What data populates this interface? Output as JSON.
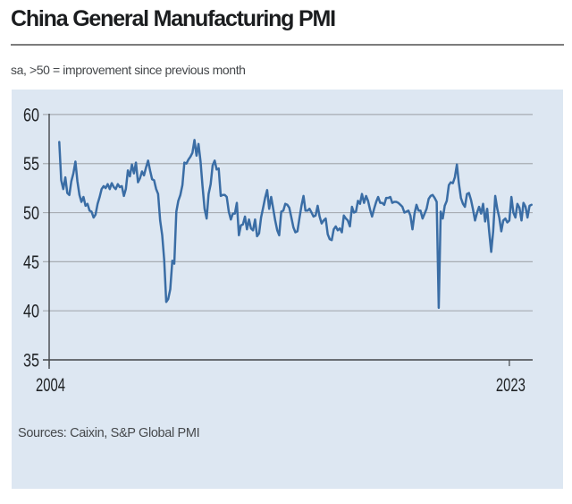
{
  "header": {
    "title": "China General Manufacturing PMI",
    "subtitle": "sa, >50 = improvement since previous month"
  },
  "footer": {
    "sources": "Sources: Caixin, S&P Global PMI"
  },
  "chart_data": {
    "type": "line",
    "title": "China General Manufacturing PMI",
    "subtitle": "sa, >50 = improvement since previous month",
    "xlabel": "",
    "ylabel": "",
    "ylim": [
      35,
      60
    ],
    "yticks": [
      35,
      40,
      45,
      50,
      55,
      60
    ],
    "xticks": [
      {
        "label": "2004",
        "year": 2004
      },
      {
        "label": "2023",
        "year": 2023
      }
    ],
    "grid": "horizontal",
    "legend": "none",
    "colors": {
      "line": "#3A6DA5",
      "panel_bg": "#DDE7F2",
      "grid": "#A7ACB2",
      "axis": "#43474B",
      "tick_text": "#202326"
    },
    "series": [
      {
        "name": "Caixin China General Manufacturing PMI",
        "frequency": "monthly",
        "start": {
          "year": 2004,
          "month": 6
        },
        "end": {
          "year": 2023,
          "month": 12
        },
        "values": [
          57.2,
          53.3,
          52.4,
          53.6,
          52.0,
          51.8,
          53.2,
          54.0,
          55.2,
          53.2,
          51.8,
          51.1,
          51.6,
          50.7,
          50.9,
          50.2,
          50.1,
          49.5,
          49.8,
          50.9,
          51.6,
          52.4,
          52.7,
          52.5,
          52.9,
          52.4,
          53.0,
          52.6,
          52.4,
          52.9,
          52.6,
          52.7,
          51.7,
          52.4,
          54.3,
          53.7,
          54.9,
          54.0,
          55.1,
          53.1,
          53.5,
          54.2,
          53.8,
          54.6,
          55.3,
          54.3,
          53.4,
          53.3,
          52.4,
          51.9,
          49.2,
          47.7,
          45.2,
          40.9,
          41.2,
          42.2,
          45.1,
          44.8,
          50.1,
          51.2,
          51.8,
          52.8,
          55.1,
          55.0,
          55.4,
          55.7,
          56.1,
          57.4,
          55.8,
          57.0,
          55.2,
          52.7,
          50.4,
          49.4,
          51.9,
          52.9,
          54.8,
          55.3,
          54.4,
          54.5,
          51.7,
          51.8,
          51.8,
          51.6,
          50.1,
          49.3,
          49.9,
          49.9,
          51.0,
          47.7,
          48.7,
          48.8,
          49.6,
          48.3,
          49.3,
          48.4,
          48.2,
          49.3,
          47.6,
          47.9,
          49.5,
          50.5,
          51.5,
          52.3,
          50.4,
          51.6,
          50.4,
          49.2,
          48.2,
          47.7,
          50.1,
          50.2,
          50.9,
          50.8,
          50.5,
          49.5,
          48.5,
          48.0,
          48.1,
          49.4,
          50.7,
          51.7,
          50.2,
          50.2,
          50.4,
          50.0,
          49.6,
          49.7,
          50.7,
          49.6,
          48.9,
          49.2,
          49.4,
          47.8,
          47.3,
          47.2,
          48.3,
          48.6,
          48.2,
          48.4,
          48.0,
          49.7,
          49.4,
          49.2,
          48.6,
          50.6,
          50.0,
          50.1,
          51.2,
          50.9,
          51.9,
          51.0,
          51.7,
          51.2,
          50.3,
          49.6,
          50.4,
          51.1,
          51.6,
          51.0,
          51.0,
          50.8,
          51.5,
          51.5,
          51.6,
          51.0,
          51.1,
          51.1,
          51.0,
          50.8,
          50.6,
          50.0,
          50.1,
          50.2,
          49.7,
          48.3,
          49.9,
          50.8,
          50.2,
          50.2,
          49.4,
          49.9,
          50.4,
          51.4,
          51.7,
          51.8,
          51.5,
          51.1,
          40.3,
          50.1,
          49.4,
          50.7,
          51.2,
          52.8,
          53.1,
          53.0,
          53.6,
          54.9,
          53.0,
          51.5,
          50.9,
          50.6,
          51.9,
          52.0,
          51.3,
          50.3,
          49.2,
          50.0,
          50.6,
          49.9,
          50.9,
          49.1,
          50.4,
          48.1,
          46.0,
          48.1,
          51.7,
          50.4,
          49.5,
          48.1,
          49.2,
          49.4,
          49.0,
          49.2,
          51.6,
          50.0,
          49.5,
          50.9,
          50.5,
          49.2,
          51.0,
          50.6,
          49.5,
          50.7,
          50.8
        ]
      }
    ]
  }
}
